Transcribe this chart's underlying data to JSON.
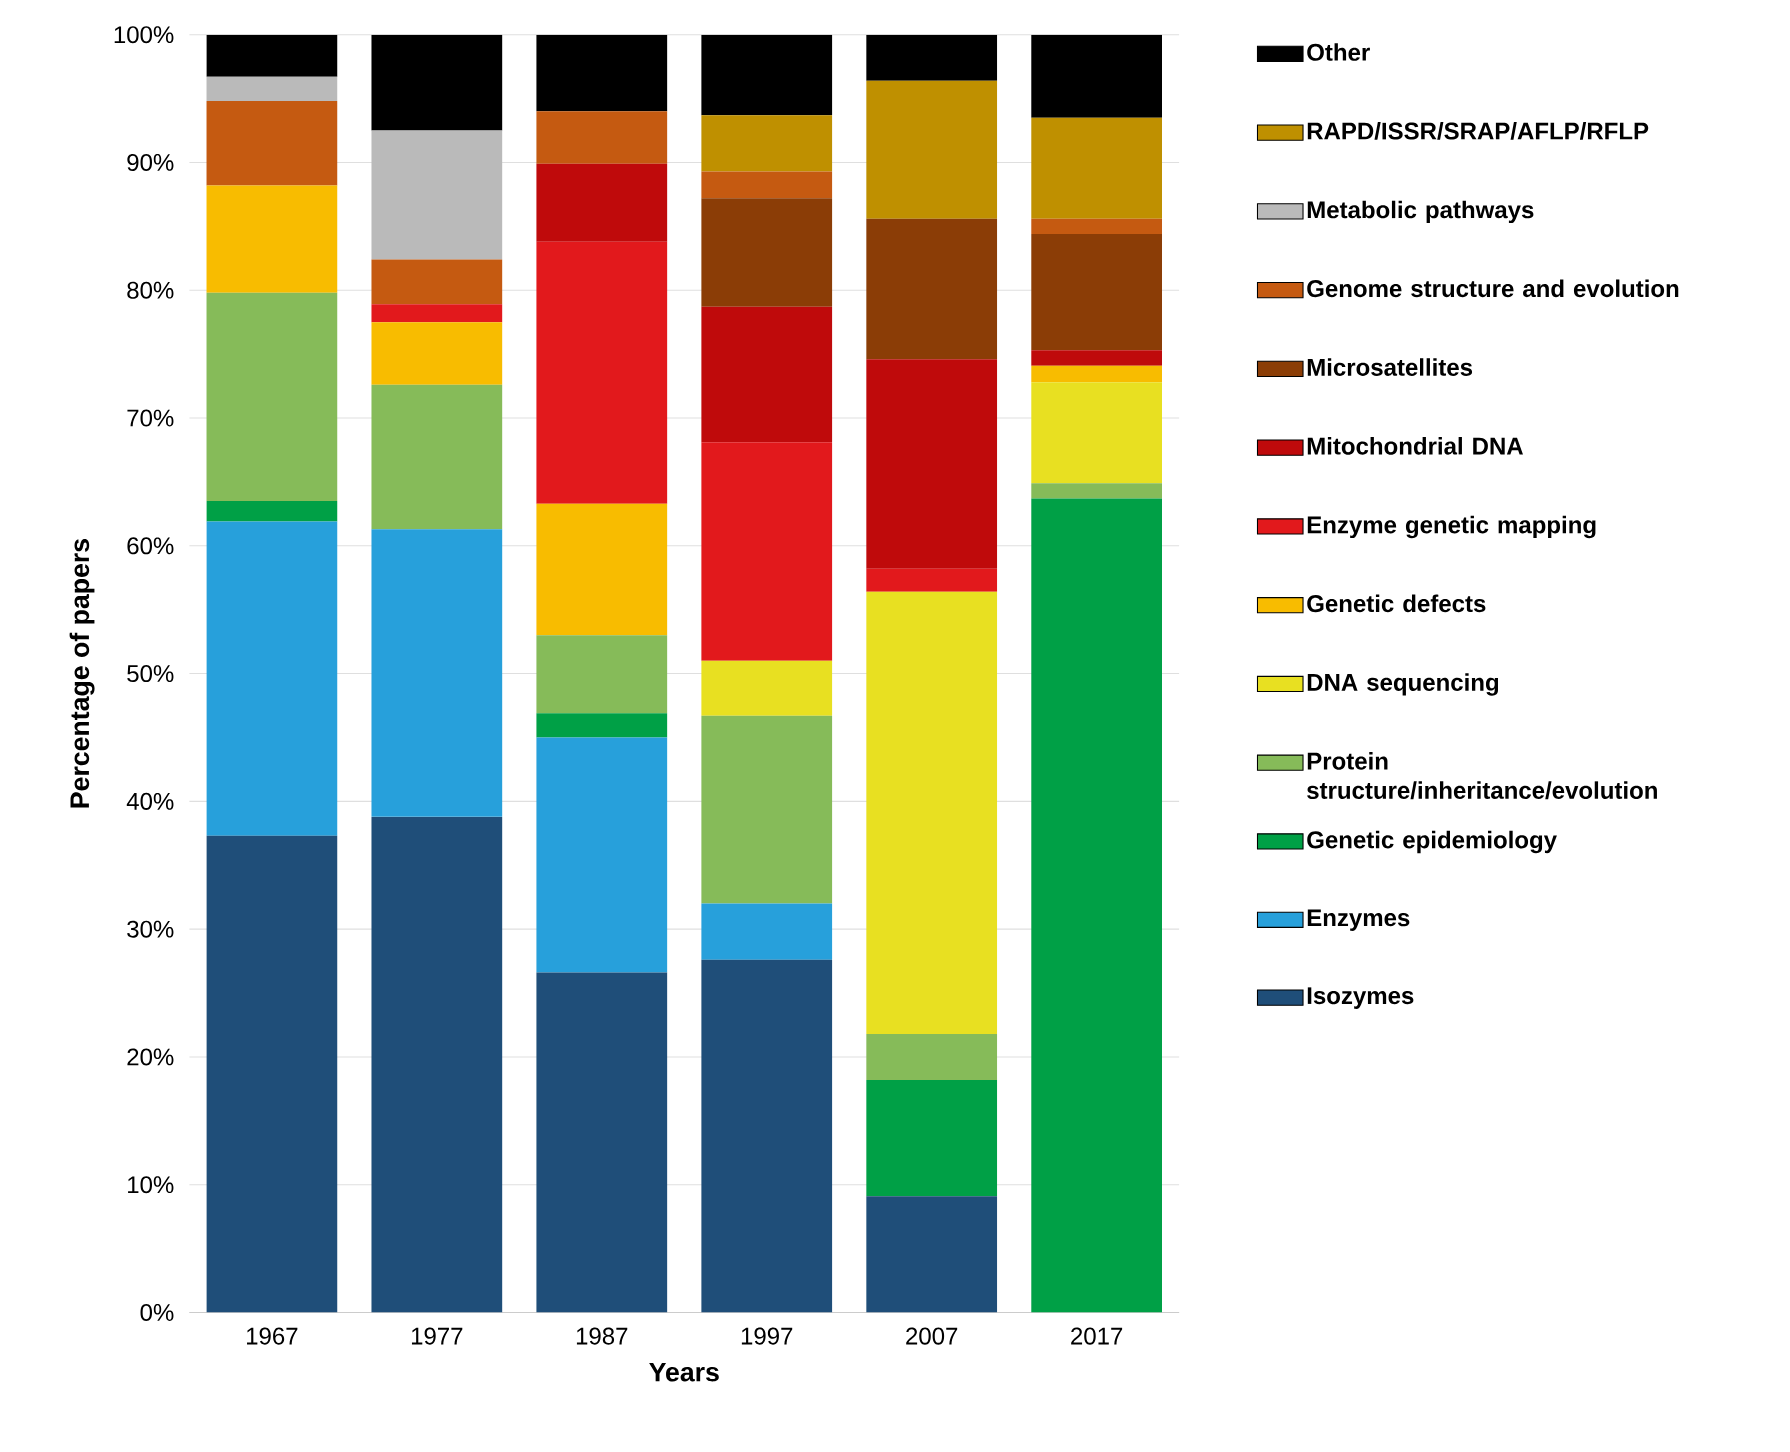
{
  "chart_data": {
    "type": "bar",
    "stacked": true,
    "xlabel": "Years",
    "ylabel": "Percentage of papers",
    "categories": [
      "1967",
      "1977",
      "1987",
      "1997",
      "2007",
      "2017"
    ],
    "ylim": [
      0,
      100
    ],
    "yticks": [
      {
        "value": 0,
        "label": "0%"
      },
      {
        "value": 10,
        "label": "10%"
      },
      {
        "value": 20,
        "label": "20%"
      },
      {
        "value": 30,
        "label": "30%"
      },
      {
        "value": 40,
        "label": "40%"
      },
      {
        "value": 50,
        "label": "50%"
      },
      {
        "value": 60,
        "label": "60%"
      },
      {
        "value": 70,
        "label": "70%"
      },
      {
        "value": 80,
        "label": "80%"
      },
      {
        "value": 90,
        "label": "90%"
      },
      {
        "value": 100,
        "label": "100%"
      }
    ],
    "grid": "y",
    "legend": "right",
    "series": [
      {
        "name": "Isozymes",
        "color": "#1f4e79",
        "values": [
          37.3,
          38.8,
          26.6,
          27.6,
          9.1,
          null
        ]
      },
      {
        "name": "Enzymes",
        "color": "#27a0db",
        "values": [
          24.6,
          22.5,
          18.4,
          4.4,
          null,
          null
        ]
      },
      {
        "name": "Genetic epidemiology",
        "color": "#00a046",
        "values": [
          1.6,
          null,
          1.9,
          null,
          9.1,
          63.7
        ]
      },
      {
        "name": "Protein structure/inheritance/evolution",
        "color": "#86bb59",
        "values": [
          16.3,
          11.3,
          6.1,
          14.7,
          3.6,
          1.2
        ]
      },
      {
        "name": "DNA sequencing",
        "color": "#e8e021",
        "values": [
          null,
          null,
          null,
          4.3,
          34.6,
          7.9
        ]
      },
      {
        "name": "Genetic defects",
        "color": "#f8bc00",
        "values": [
          8.4,
          4.9,
          10.3,
          null,
          null,
          1.3
        ]
      },
      {
        "name": "Enzyme genetic mapping",
        "color": "#e2191c",
        "values": [
          null,
          1.4,
          20.5,
          17.1,
          1.8,
          null
        ]
      },
      {
        "name": "Mitochondrial DNA",
        "color": "#bf0a0b",
        "values": [
          null,
          null,
          6.1,
          10.6,
          16.4,
          1.2
        ]
      },
      {
        "name": "Microsatellites",
        "color": "#8b3d06",
        "values": [
          null,
          null,
          null,
          8.5,
          11.0,
          9.1
        ]
      },
      {
        "name": "Genome structure and evolution",
        "color": "#c55a11",
        "values": [
          6.6,
          3.5,
          4.1,
          2.1,
          null,
          1.2
        ]
      },
      {
        "name": "Metabolic pathways",
        "color": "#bababa",
        "values": [
          1.9,
          10.1,
          null,
          null,
          null,
          null
        ]
      },
      {
        "name": "RAPD/ISSR/SRAP/AFLP/RFLP",
        "color": "#bf9000",
        "values": [
          null,
          null,
          null,
          4.4,
          10.8,
          7.9
        ]
      },
      {
        "name": "Other",
        "color": "#000000",
        "values": [
          3.3,
          7.5,
          6.0,
          6.3,
          3.6,
          6.5
        ]
      }
    ]
  }
}
